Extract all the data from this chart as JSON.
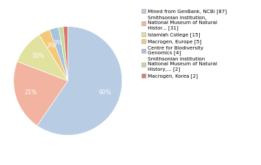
{
  "labels": [
    "Mined from GenBank, NCBI [87]",
    "Smithsonian Institution,\nNational Museum of Natural\nHistor... [31]",
    "Islamiah College [15]",
    "Macrogen, Europe [5]",
    "Centre for Biodiversity\nGenomics [4]",
    "Smithsonian Institution\nNational Museum of Natural\nHistory,... [2]",
    "Macrogen, Korea [2]"
  ],
  "values": [
    87,
    31,
    15,
    5,
    4,
    2,
    2
  ],
  "colors": [
    "#b8cce4",
    "#f2b4a0",
    "#e2e2a0",
    "#f5c878",
    "#a8c4dc",
    "#c5d9a0",
    "#d9796a"
  ],
  "startangle": 90,
  "figsize": [
    3.8,
    2.4
  ],
  "dpi": 100,
  "pct_threshold": 1.5
}
